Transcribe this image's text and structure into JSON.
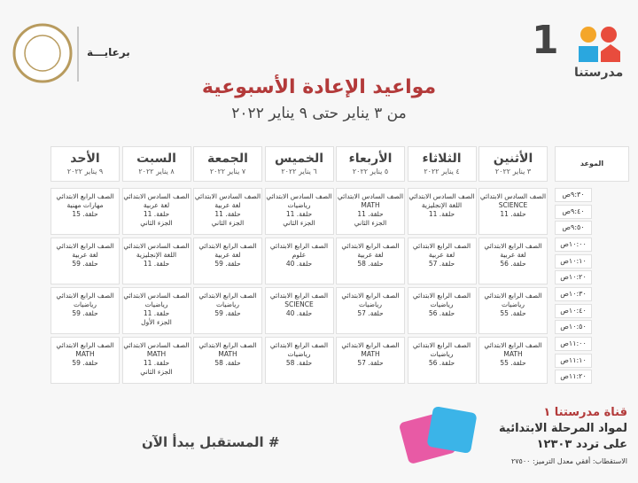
{
  "header": {
    "sponsor": "برعايـــة",
    "logo_number": "1",
    "logo_text": "مدرستنا",
    "title": "مواعيد الإعادة الأسبوعية",
    "subtitle": "من ٣ يناير حتى ٩ يناير ٢٠٢٢"
  },
  "table": {
    "time_header": "الموعد",
    "days": [
      {
        "day": "الأثنين",
        "date": "٣ يناير ٢٠٢٢"
      },
      {
        "day": "الثلاثاء",
        "date": "٤ يناير ٢٠٢٢"
      },
      {
        "day": "الأربعاء",
        "date": "٥ يناير ٢٠٢٢"
      },
      {
        "day": "الخميس",
        "date": "٦ يناير ٢٠٢٢"
      },
      {
        "day": "الجمعة",
        "date": "٧ يناير ٢٠٢٢"
      },
      {
        "day": "السبت",
        "date": "٨ يناير ٢٠٢٢"
      },
      {
        "day": "الأحد",
        "date": "٩ يناير ٢٠٢٢"
      }
    ],
    "times": [
      "٩:٣٠ص",
      "٩:٤٠ص",
      "٩:٥٠ص",
      "١٠:٠٠ص",
      "١٠:١٠ص",
      "١٠:٢٠ص",
      "١٠:٣٠ص",
      "١٠:٤٠ص",
      "١٠:٥٠ص",
      "١١:٠٠ص",
      "١١:١٠ص",
      "١١:٢٠ص"
    ],
    "blocks": [
      [
        [
          "الصف السادس الابتدائي",
          "SCIENCE",
          "حلقة. 11"
        ],
        [
          "الصف السادس الابتدائي",
          "اللغة الإنجليزية",
          "حلقة. 11"
        ],
        [
          "الصف السادس الابتدائي",
          "MATH",
          "حلقة. 11",
          "الجزء الثاني"
        ],
        [
          "الصف السادس الابتدائي",
          "رياضيات",
          "حلقة. 11",
          "الجزء الثاني"
        ],
        [
          "الصف السادس الابتدائي",
          "لغة عربية",
          "حلقة. 11",
          "الجزء الثاني"
        ],
        [
          "الصف السادس الابتدائي",
          "لغة عربية",
          "حلقة. 11",
          "الجزء الثاني"
        ],
        [
          "الصف الرابع الابتدائي",
          "مهارات مهنية",
          "حلقة. 15"
        ]
      ],
      [
        [
          "الصف الرابع الابتدائي",
          "لغة عربية",
          "حلقة. 56"
        ],
        [
          "الصف الرابع الابتدائي",
          "لغة عربية",
          "حلقة. 57"
        ],
        [
          "الصف الرابع الابتدائي",
          "لغة عربية",
          "حلقة. 58"
        ],
        [
          "الصف الرابع الابتدائي",
          "علوم",
          "حلقة. 40"
        ],
        [
          "الصف الرابع الابتدائي",
          "لغة عربية",
          "حلقة. 59"
        ],
        [
          "الصف السادس الابتدائي",
          "اللغة الإنجليزية",
          "حلقة. 11"
        ],
        [
          "الصف الرابع الابتدائي",
          "لغة عربية",
          "حلقة. 59"
        ]
      ],
      [
        [
          "الصف الرابع الابتدائي",
          "رياضيات",
          "حلقة. 55"
        ],
        [
          "الصف الرابع الابتدائي",
          "رياضيات",
          "حلقة. 56"
        ],
        [
          "الصف الرابع الابتدائي",
          "رياضيات",
          "حلقة. 57"
        ],
        [
          "الصف الرابع الابتدائي",
          "SCIENCE",
          "حلقة. 40"
        ],
        [
          "الصف الرابع الابتدائي",
          "رياضيات",
          "حلقة. 59"
        ],
        [
          "الصف السادس الابتدائي",
          "رياضيات",
          "حلقة. 11",
          "الجزء الأول"
        ],
        [
          "الصف الرابع الابتدائي",
          "رياضيات",
          "حلقة. 59"
        ]
      ],
      [
        [
          "الصف الرابع الابتدائي",
          "MATH",
          "حلقة. 55"
        ],
        [
          "الصف الرابع الابتدائي",
          "رياضيات",
          "حلقة. 56"
        ],
        [
          "الصف الرابع الابتدائي",
          "MATH",
          "حلقة. 57"
        ],
        [
          "الصف الرابع الابتدائي",
          "رياضيات",
          "حلقة. 58"
        ],
        [
          "الصف الرابع الابتدائي",
          "MATH",
          "حلقة. 58"
        ],
        [
          "الصف السادس الابتدائي",
          "MATH",
          "حلقة. 11",
          "الجزء الثاني"
        ],
        [
          "الصف الرابع الابتدائي",
          "MATH",
          "حلقة. 59"
        ]
      ]
    ]
  },
  "footer": {
    "slogan": "# المستقبل يبدأ الآن",
    "channel": "قناة مدرستنا ١",
    "stage": "لمواد المرحلة الابتدائية",
    "frequency": "على تردد ١٢٣٠٣",
    "reception": "الاستقطاب: أفقي معدل الترميز: ٢٧٥٠٠"
  }
}
